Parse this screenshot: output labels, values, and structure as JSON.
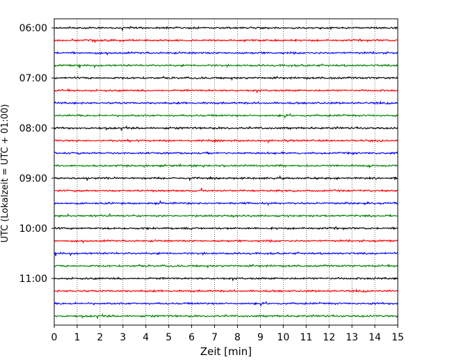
{
  "chart_data": {
    "type": "line",
    "xlabel": "Zeit  [min]",
    "ylabel": "UTC (Lokalzeit = UTC + 01:00)",
    "xlim": [
      0,
      15
    ],
    "x_ticks": [
      0,
      1,
      2,
      3,
      4,
      5,
      6,
      7,
      8,
      9,
      10,
      11,
      12,
      13,
      14,
      15
    ],
    "x_tick_labels": [
      "0",
      "1",
      "2",
      "3",
      "4",
      "5",
      "6",
      "7",
      "8",
      "9",
      "10",
      "11",
      "12",
      "13",
      "14",
      "15"
    ],
    "y_tick_labels": [
      "06:00",
      "07:00",
      "08:00",
      "09:00",
      "10:00",
      "11:00"
    ],
    "y_tick_rows": [
      0,
      4,
      8,
      12,
      16,
      20
    ],
    "row_count": 24,
    "row_interval_min": 15,
    "start_time": "06:00",
    "grid": "vertical dotted lines at each minute",
    "trace_colors": [
      "#000000",
      "#ff0000",
      "#0000ff",
      "#008000"
    ],
    "trace_amplitude": "small noise around each row baseline"
  }
}
